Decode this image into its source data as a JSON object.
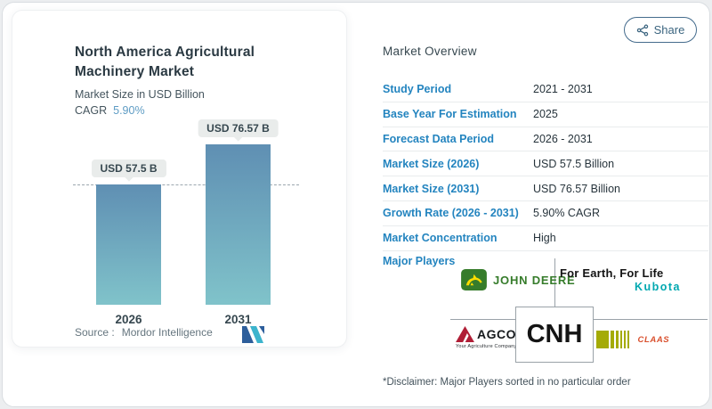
{
  "share": {
    "label": "Share"
  },
  "left_panel": {
    "title_line1": "North America Agricultural",
    "title_line2": "Machinery Market",
    "subtitle": "Market Size in USD Billion",
    "cagr_label": "CAGR",
    "cagr_value": "5.90%",
    "source_label": "Source :",
    "source_value": "Mordor Intelligence"
  },
  "chart_data": {
    "type": "bar",
    "categories": [
      "2026",
      "2031"
    ],
    "values": [
      57.5,
      76.57
    ],
    "bar_labels": [
      "USD 57.5 B",
      "USD 76.57 B"
    ],
    "title": "North America Agricultural Machinery Market",
    "ylabel": "Market Size in USD Billion",
    "cagr": "5.90%",
    "reference_line_value": 57.5,
    "grid": false,
    "bar_gradient_top": "#5f8fb3",
    "bar_gradient_bottom": "#80c3ca"
  },
  "overview": {
    "heading": "Market Overview",
    "rows": [
      {
        "label": "Study Period",
        "value": "2021 - 2031"
      },
      {
        "label": "Base Year For Estimation",
        "value": "2025"
      },
      {
        "label": "Forecast Data Period",
        "value": "2026 - 2031"
      },
      {
        "label": "Market Size (2026)",
        "value": "USD 57.5 Billion"
      },
      {
        "label": "Market Size (2031)",
        "value": "USD 76.57 Billion"
      },
      {
        "label": "Growth Rate (2026 - 2031)",
        "value": "5.90% CAGR"
      },
      {
        "label": "Market Concentration",
        "value": "High"
      }
    ],
    "major_players": {
      "label": "Major Players",
      "john_deere": "John Deere",
      "kubota_tagline": "For Earth, For Life",
      "kubota_name": "Kubota",
      "agco_name": "AGCO",
      "agco_tagline": "Your Agriculture Company",
      "cnh_name": "CNH",
      "claas_name": "CLAAS"
    },
    "disclaimer": "*Disclaimer: Major Players sorted in no particular order"
  },
  "colors": {
    "accent_blue": "#2384bf",
    "cagr_blue": "#5e9cc4",
    "heading_dark": "#36474f",
    "share_slate": "#3e688a",
    "john_deere_green": "#367c2b",
    "kubota_teal": "#00a8b0",
    "agco_red": "#b01e36",
    "claas_olive": "#a4ab06",
    "claas_red": "#d9502e"
  }
}
